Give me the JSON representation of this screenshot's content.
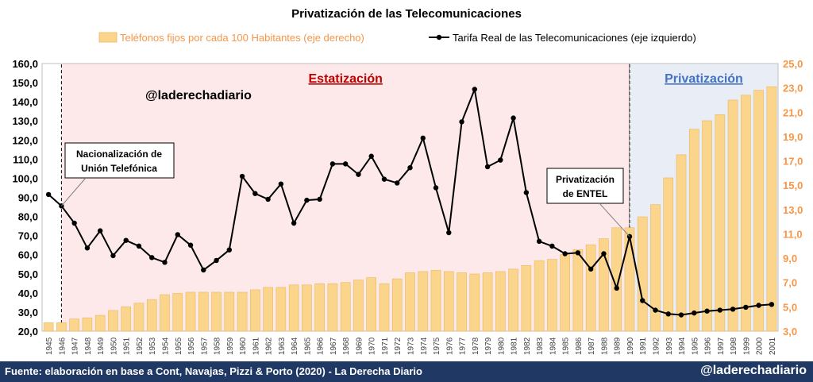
{
  "chart_data": {
    "type": "bar+line",
    "title": "Privatización de las Telecomunicaciones",
    "categories": [
      "1945",
      "1946",
      "1947",
      "1948",
      "1949",
      "1950",
      "1951",
      "1952",
      "1953",
      "1954",
      "1955",
      "1956",
      "1957",
      "1958",
      "1959",
      "1960",
      "1961",
      "1962",
      "1963",
      "1964",
      "1965",
      "1966",
      "1967",
      "1968",
      "1969",
      "1970",
      "1971",
      "1972",
      "1973",
      "1974",
      "1975",
      "1976",
      "1977",
      "1978",
      "1979",
      "1980",
      "1981",
      "1982",
      "1983",
      "1984",
      "1985",
      "1986",
      "1987",
      "1988",
      "1989",
      "1990",
      "1991",
      "1992",
      "1993",
      "1994",
      "1995",
      "1996",
      "1997",
      "1998",
      "1999",
      "2000",
      "2001"
    ],
    "series": [
      {
        "name": "Teléfonos fijos por cada 100 Habitantes (eje derecho)",
        "kind": "bar",
        "axis": "right",
        "color": "#fcd58c",
        "values": [
          3.7,
          3.7,
          4.0,
          4.1,
          4.3,
          4.7,
          5.0,
          5.3,
          5.6,
          6.0,
          6.1,
          6.2,
          6.2,
          6.2,
          6.2,
          6.2,
          6.4,
          6.6,
          6.6,
          6.8,
          6.8,
          6.9,
          6.9,
          7.0,
          7.2,
          7.4,
          6.9,
          7.3,
          7.8,
          7.9,
          8.0,
          7.9,
          7.8,
          7.7,
          7.8,
          7.9,
          8.1,
          8.4,
          8.8,
          8.9,
          9.3,
          9.7,
          10.1,
          10.6,
          11.5,
          11.5,
          12.4,
          13.4,
          15.6,
          17.5,
          19.6,
          20.3,
          20.8,
          22.0,
          22.4,
          22.8,
          23.1
        ]
      },
      {
        "name": "Tarifa Real de las Telecomunicaciones (eje izquierdo)",
        "kind": "line",
        "axis": "left",
        "color": "#000000",
        "values": [
          91.5,
          85.5,
          76.5,
          63.5,
          72.5,
          59.5,
          67.5,
          64.5,
          58.5,
          56.0,
          70.5,
          65.0,
          52.0,
          57.0,
          62.5,
          101.0,
          92.0,
          89.0,
          97.0,
          76.5,
          88.5,
          89.0,
          107.5,
          107.5,
          102.0,
          111.5,
          99.5,
          97.5,
          105.5,
          121.0,
          95.0,
          71.5,
          129.5,
          146.5,
          106.0,
          109.5,
          131.5,
          92.5,
          67.0,
          64.5,
          60.5,
          61.0,
          52.5,
          60.5,
          42.5,
          69.5,
          36.0,
          31.0,
          29.0,
          28.5,
          29.5,
          30.5,
          31.0,
          31.5,
          32.5,
          33.5,
          34.0
        ]
      }
    ],
    "ylim_left": [
      20,
      160
    ],
    "yticks_left": [
      "20,0",
      "30,0",
      "40,0",
      "50,0",
      "60,0",
      "70,0",
      "80,0",
      "90,0",
      "100,0",
      "110,0",
      "120,0",
      "130,0",
      "140,0",
      "150,0",
      "160,0"
    ],
    "ylim_right": [
      3,
      25
    ],
    "yticks_right": [
      "3,0",
      "5,0",
      "7,0",
      "9,0",
      "11,0",
      "13,0",
      "15,0",
      "17,0",
      "19,0",
      "21,0",
      "23,0",
      "25,0"
    ],
    "regions": [
      {
        "label": "Estatización",
        "from": "1946",
        "to": "1990",
        "fill": "#fde9e9",
        "label_color": "#c00000"
      },
      {
        "label": "Privatización",
        "from": "1990",
        "to": "2001",
        "fill": "#e8edf6",
        "label_color": "#4472c4"
      }
    ],
    "annotations": [
      {
        "line1": "Nacionalización de",
        "line2": "Unión Telefónica",
        "year": "1946"
      },
      {
        "line1": "Privatización",
        "line2": "de ENTEL",
        "year": "1990"
      }
    ],
    "watermark": "@laderechadiario",
    "legend_position": "top",
    "grid": false
  },
  "footer": {
    "source": "Fuente: elaboración en base a Cont, Navajas, Pizzi & Porto (2020) - La Derecha Diario",
    "handle": "@laderechadiario"
  }
}
